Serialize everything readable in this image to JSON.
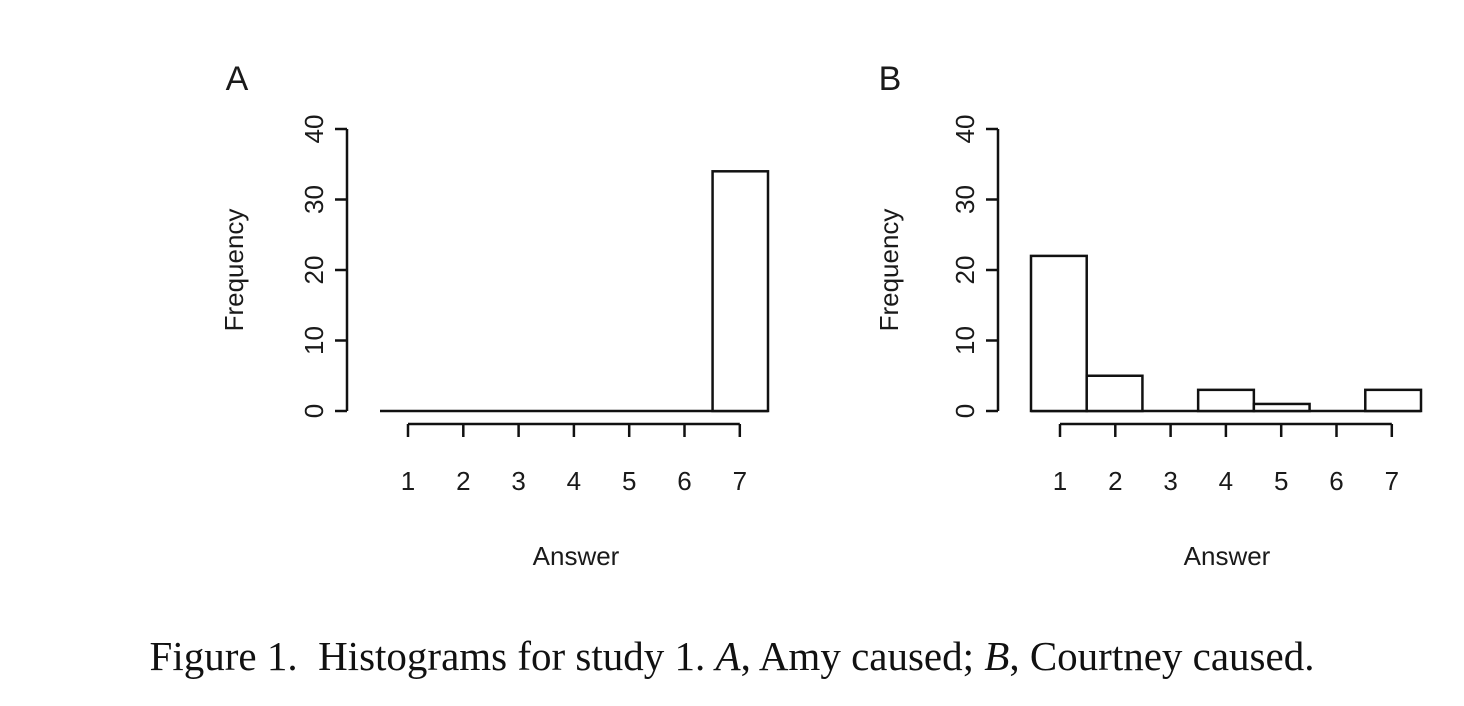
{
  "caption": {
    "lead": "Figure 1.",
    "text1": "Histograms for study 1.",
    "labelA": "A",
    "textA": ", Amy caused; ",
    "labelB": "B",
    "textB": ", Courtney caused."
  },
  "chart_data": [
    {
      "type": "bar",
      "panel_label": "A",
      "categories": [
        "1",
        "2",
        "3",
        "4",
        "5",
        "6",
        "7"
      ],
      "values": [
        0,
        0,
        0,
        0,
        0,
        0,
        34
      ],
      "xlabel": "Answer",
      "ylabel": "Frequency",
      "ylim": [
        0,
        40
      ],
      "yticks": [
        "0",
        "10",
        "20",
        "30",
        "40"
      ],
      "grid": false,
      "legend": "none"
    },
    {
      "type": "bar",
      "panel_label": "B",
      "categories": [
        "1",
        "2",
        "3",
        "4",
        "5",
        "6",
        "7"
      ],
      "values": [
        22,
        5,
        0,
        3,
        1,
        0,
        3
      ],
      "xlabel": "Answer",
      "ylabel": "Frequency",
      "ylim": [
        0,
        40
      ],
      "yticks": [
        "0",
        "10",
        "20",
        "30",
        "40"
      ],
      "grid": false,
      "legend": "none"
    }
  ]
}
